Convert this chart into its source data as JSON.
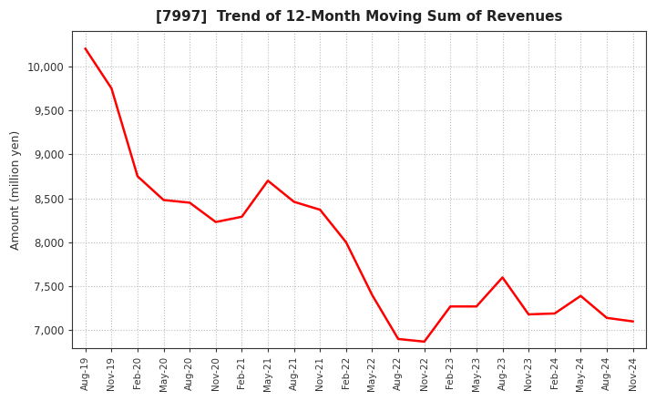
{
  "title": "[7997]  Trend of 12-Month Moving Sum of Revenues",
  "ylabel": "Amount (million yen)",
  "line_color": "#FF0000",
  "line_width": 1.8,
  "background_color": "#FFFFFF",
  "grid_color": "#AAAAAA",
  "ylim": [
    6800,
    10400
  ],
  "yticks": [
    7000,
    7500,
    8000,
    8500,
    9000,
    9500,
    10000
  ],
  "x_labels": [
    "Aug-19",
    "Nov-19",
    "Feb-20",
    "May-20",
    "Aug-20",
    "Nov-20",
    "Feb-21",
    "May-21",
    "Aug-21",
    "Nov-21",
    "Feb-22",
    "May-22",
    "Aug-22",
    "Nov-22",
    "Feb-23",
    "May-23",
    "Aug-23",
    "Nov-23",
    "Feb-24",
    "May-24",
    "Aug-24",
    "Nov-24"
  ],
  "values": [
    10200,
    9750,
    8750,
    8480,
    8450,
    8230,
    8290,
    8700,
    8460,
    8370,
    8000,
    7400,
    6900,
    6870,
    7270,
    7270,
    7600,
    7180,
    7190,
    7390,
    7140,
    7100
  ]
}
